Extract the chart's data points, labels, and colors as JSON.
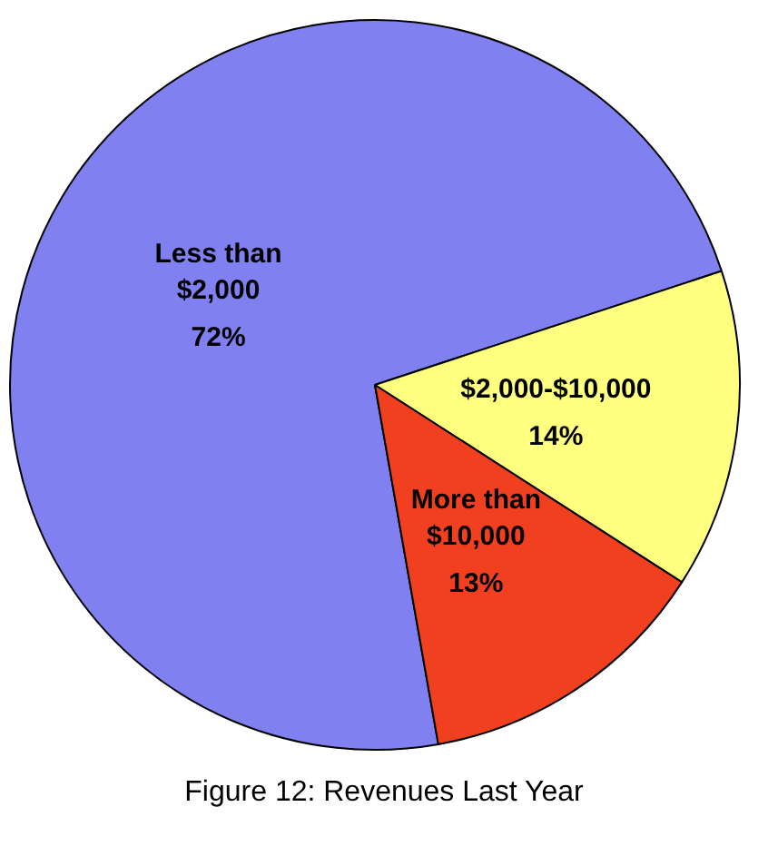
{
  "chart_data": {
    "type": "pie",
    "title": "Figure 12:  Revenues Last Year",
    "categories": [
      "Less than $2,000",
      "$2,000-$10,000",
      "More than $10,000"
    ],
    "values": [
      72,
      14,
      13
    ],
    "colors": [
      "#8080f0",
      "#ffff80",
      "#f04020"
    ],
    "value_labels": [
      "72%",
      "14%",
      "13%"
    ],
    "legend": false
  }
}
